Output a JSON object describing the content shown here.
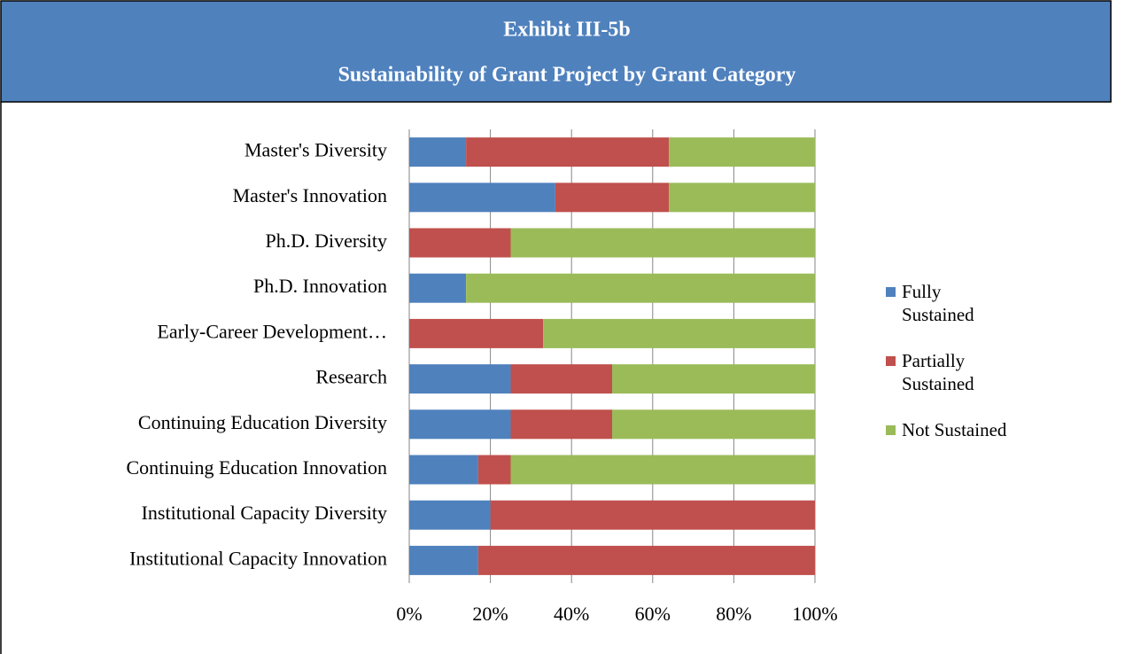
{
  "chart_data": {
    "type": "stacked_bar_horizontal",
    "title": "Exhibit III-5b",
    "subtitle": "Sustainability of Grant Project by Grant Category",
    "categories": [
      "Master's Diversity",
      "Master's Innovation",
      "Ph.D. Diversity",
      "Ph.D. Innovation",
      "Early-Career Development…",
      "Research",
      "Continuing Education Diversity",
      "Continuing Education Innovation",
      "Institutional Capacity Diversity",
      "Institutional Capacity Innovation"
    ],
    "series": [
      {
        "name": "Fully Sustained",
        "color": "#4f81bd",
        "values": [
          14,
          36,
          0,
          14,
          0,
          25,
          25,
          17,
          20,
          17
        ]
      },
      {
        "name": "Partially Sustained",
        "color": "#c0504d",
        "values": [
          50,
          28,
          25,
          0,
          33,
          25,
          25,
          8,
          80,
          83
        ]
      },
      {
        "name": "Not Sustained",
        "color": "#9bbb59",
        "values": [
          36,
          36,
          75,
          86,
          67,
          50,
          50,
          75,
          0,
          0
        ]
      }
    ],
    "xlim": [
      0,
      100
    ],
    "xticks": [
      {
        "value": 0,
        "label": "0%"
      },
      {
        "value": 20,
        "label": "20%"
      },
      {
        "value": 40,
        "label": "40%"
      },
      {
        "value": 60,
        "label": "60%"
      },
      {
        "value": 80,
        "label": "80%"
      },
      {
        "value": 100,
        "label": "100%"
      }
    ],
    "grid": true,
    "legend": "right"
  }
}
